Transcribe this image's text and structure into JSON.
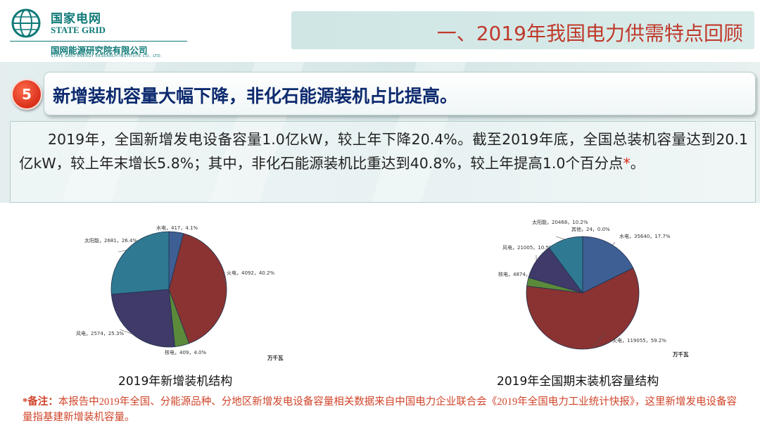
{
  "header": {
    "logo_cn": "国家电网",
    "logo_en": "STATE GRID",
    "institute_cn": "国网能源研究院有限公司",
    "institute_en": "STATE GRID ENERGY RESEARCH INSTITUTE CO., LTD.",
    "title": "一、2019年我国电力供需特点回顾"
  },
  "section": {
    "number": "5",
    "headline": "新增装机容量大幅下降，非化石能源装机占比提高。",
    "body": "2019年，全国新增发电设备容量1.0亿kW，较上年下降20.4%。截至2019年底，全国总装机容量达到20.1亿kW，较上年末增长5.8%；其中，非化石能源装机比重达到40.8%，较上年提高1.0个百分点",
    "body_mark": "*"
  },
  "footnote": {
    "label": "*备注：",
    "text": "本报告中2019年全国、分能源品种、分地区新增发电设备容量相关数据来自中国电力企业联合会《2019年全国电力工业统计快报》，这里新增发电设备容量指基建新增装机容量。"
  },
  "colors": {
    "hydro": "#3e5f94",
    "thermal": "#8a3332",
    "nuclear": "#5c8a3b",
    "wind": "#3f3a68",
    "solar": "#2f7a92",
    "title_red": "#c0392b",
    "headline_navy": "#0d2a6e",
    "brand_teal": "#0f7a78"
  },
  "chart_data": [
    {
      "type": "pie",
      "title": "2019年新增装机结构",
      "unit": "万千瓦",
      "slices": [
        {
          "name": "水电",
          "value": 417,
          "percent": "4.1%",
          "label": "水电，417，4.1%"
        },
        {
          "name": "火电",
          "value": 4092,
          "percent": "40.2%",
          "label": "火电，4092，40.2%"
        },
        {
          "name": "核电",
          "value": 409,
          "percent": "4.0%",
          "label": "核电，409，4.0%"
        },
        {
          "name": "风电",
          "value": 2574,
          "percent": "25.3%",
          "label": "风电，2574，25.3%"
        },
        {
          "name": "太阳能",
          "value": 2681,
          "percent": "26.4%",
          "label": "太阳能，2681，26.4%"
        }
      ]
    },
    {
      "type": "pie",
      "title": "2019年全国期末装机容量结构",
      "unit": "万千瓦",
      "slices": [
        {
          "name": "水电",
          "value": 35640,
          "percent": "17.7%",
          "label": "水电，35640，17.7%"
        },
        {
          "name": "火电",
          "value": 119055,
          "percent": "59.2%",
          "label": "火电，119055，59.2%"
        },
        {
          "name": "核电",
          "value": 4874,
          "percent": "2.4%",
          "label": "核电，4874，2.4%"
        },
        {
          "name": "风电",
          "value": 21005,
          "percent": "10.5%",
          "label": "风电，21005，10.5%"
        },
        {
          "name": "太阳能",
          "value": 20468,
          "percent": "10.2%",
          "label": "太阳能，20468，10.2%"
        },
        {
          "name": "其他",
          "value": 24,
          "percent": "0.0%",
          "label": "其他，24，0.0%"
        }
      ]
    }
  ]
}
